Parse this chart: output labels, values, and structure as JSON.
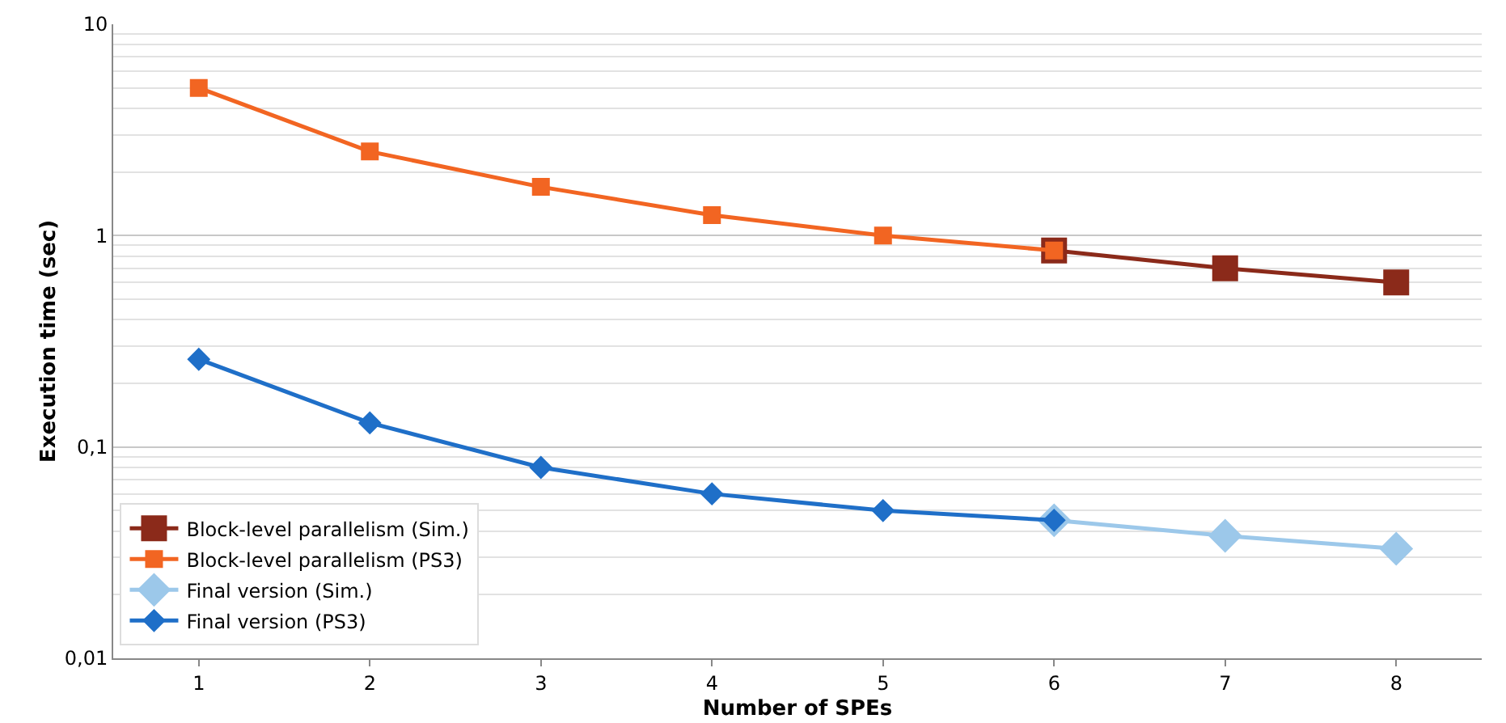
{
  "chart_data": {
    "type": "line",
    "xlabel": "Number of SPEs",
    "ylabel": "Execution time (sec)",
    "categories": [
      "1",
      "2",
      "3",
      "4",
      "5",
      "6",
      "7",
      "8"
    ],
    "series": [
      {
        "name": "Block-level parallelism (Sim.)",
        "color": "#8b2a1a",
        "marker": "square",
        "values": [
          null,
          null,
          null,
          null,
          null,
          0.85,
          0.7,
          0.6
        ]
      },
      {
        "name": "Block-level parallelism (PS3)",
        "color": "#f26522",
        "marker": "square",
        "values": [
          5,
          2.5,
          1.7,
          1.25,
          1.0,
          0.85,
          null,
          null
        ]
      },
      {
        "name": "Final version (Sim.)",
        "color": "#9cc8ea",
        "marker": "diamond",
        "values": [
          null,
          null,
          null,
          null,
          null,
          0.045,
          0.038,
          0.033
        ]
      },
      {
        "name": "Final version (PS3)",
        "color": "#1f6fc8",
        "marker": "diamond",
        "values": [
          0.26,
          0.13,
          0.08,
          0.06,
          0.05,
          0.045,
          null,
          null
        ]
      }
    ],
    "log": true,
    "ylim": [
      0.01,
      10
    ],
    "yticks": [
      {
        "value": 0.01,
        "label": "0,01"
      },
      {
        "value": 0.1,
        "label": "0,1"
      },
      1,
      10
    ],
    "grid": "y",
    "legend": "bottom left"
  }
}
